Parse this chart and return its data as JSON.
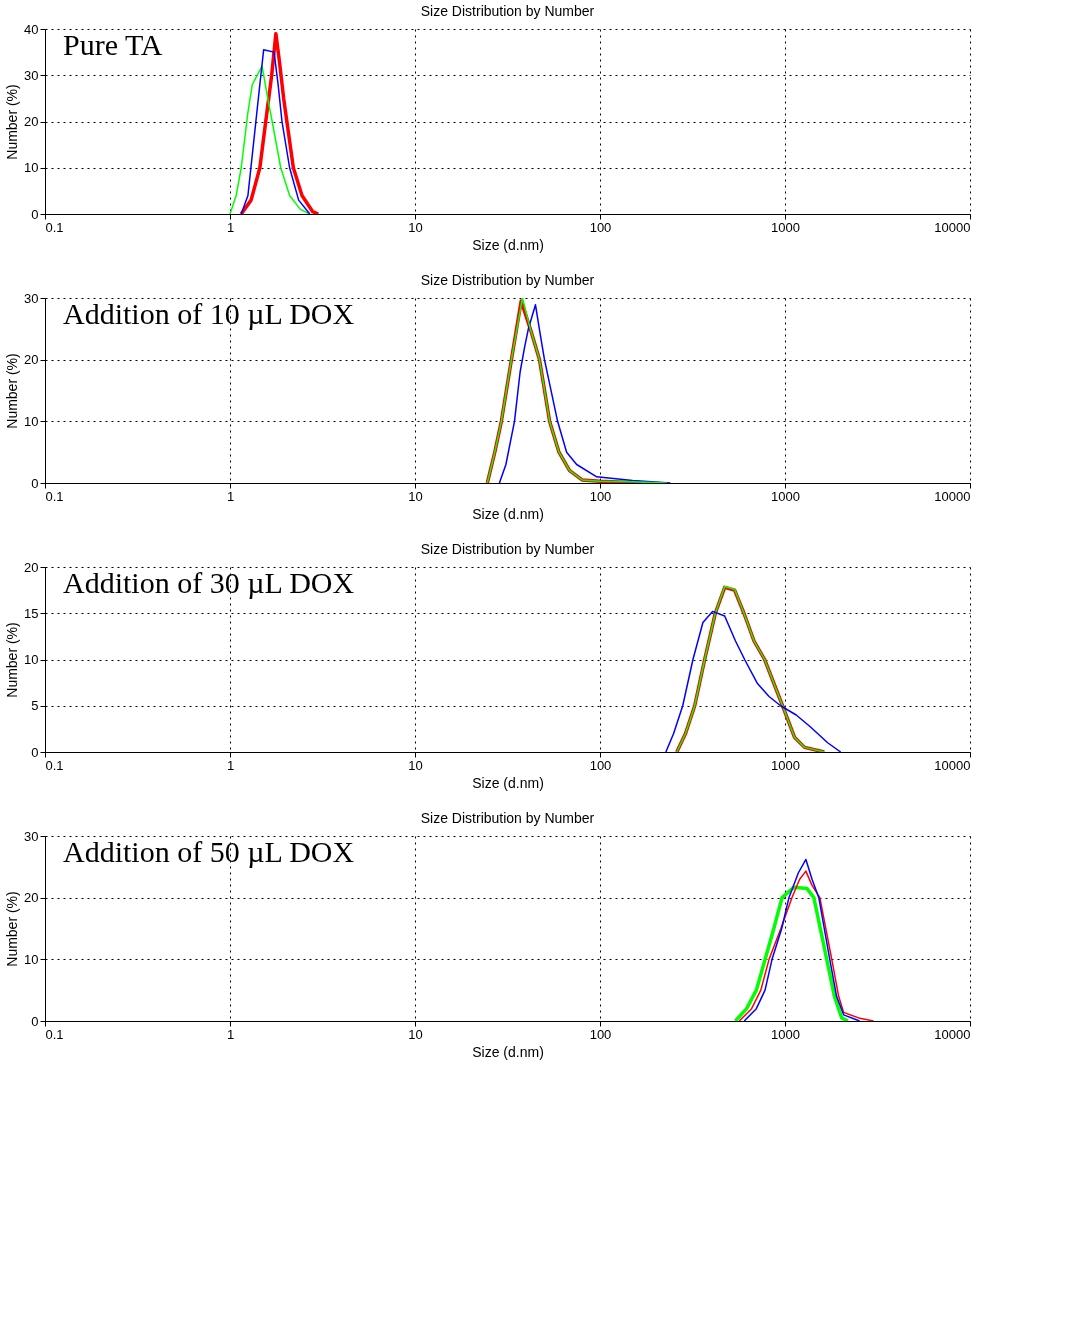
{
  "chart_data": [
    {
      "type": "line",
      "title": "Size Distribution by Number",
      "xlabel": "Size (d.nm)",
      "ylabel": "Number (%)",
      "annotations": [
        "Pure TA"
      ],
      "log": "x",
      "grid": true,
      "xlim": [
        0.1,
        10000
      ],
      "xticks": [
        0.1,
        1,
        10,
        100,
        1000,
        10000
      ],
      "ylim": [
        0,
        40
      ],
      "yticks": [
        0,
        10,
        20,
        30,
        40
      ],
      "series": [
        {
          "color": "#ff0000",
          "x": [
            1.15,
            1.3,
            1.45,
            1.56,
            1.68,
            1.77,
            1.85,
            1.95,
            2.03,
            2.2,
            2.45,
            2.8,
            3.0
          ],
          "values": [
            0,
            3,
            10,
            20,
            30,
            39,
            33,
            25,
            20,
            10,
            4,
            0.5,
            0
          ]
        },
        {
          "color": "#00ff00",
          "x": [
            1.0,
            1.08,
            1.15,
            1.25,
            1.32,
            1.49,
            1.6,
            1.69,
            1.88,
            2.1,
            2.4,
            2.7
          ],
          "values": [
            0,
            4,
            10,
            22,
            28,
            32,
            25,
            20,
            10,
            4,
            1,
            0
          ]
        },
        {
          "color": "#0000ff",
          "x": [
            1.15,
            1.25,
            1.38,
            1.45,
            1.52,
            1.73,
            1.82,
            1.91,
            2.1,
            2.35,
            2.7
          ],
          "values": [
            0,
            4,
            20,
            28,
            35.5,
            35,
            28,
            20,
            10,
            3,
            0
          ]
        }
      ]
    },
    {
      "type": "line",
      "title": "Size Distribution by Number",
      "xlabel": "Size (d.nm)",
      "ylabel": "Number (%)",
      "annotations": [
        "Addition of 10 µL DOX"
      ],
      "log": "x",
      "grid": true,
      "xlim": [
        0.1,
        10000
      ],
      "xticks": [
        0.1,
        1,
        10,
        100,
        1000,
        10000
      ],
      "ylim": [
        0,
        30
      ],
      "yticks": [
        0,
        10,
        20,
        30
      ],
      "series": [
        {
          "color": "#ff0000",
          "x": [
            24.6,
            27,
            29.3,
            33.2,
            37.5,
            42,
            47.1,
            53.4,
            60,
            68.5,
            80,
            100,
            170
          ],
          "values": [
            0,
            5,
            10,
            20,
            29.5,
            25,
            20,
            10,
            5,
            2,
            0.5,
            0.3,
            0
          ]
        },
        {
          "color": "#0000ff",
          "x": [
            28.6,
            31,
            34.5,
            37,
            39.1,
            41,
            44.8,
            47,
            50.1,
            59,
            66,
            74.8,
            96,
            150,
            240
          ],
          "values": [
            0,
            3,
            10,
            18,
            22,
            25,
            28.9,
            25,
            20,
            10,
            5,
            3,
            1,
            0.4,
            0
          ]
        },
        {
          "color": "#00ff00",
          "x": [
            24.6,
            27,
            29.3,
            33.2,
            38.1,
            42,
            47.1,
            53.4,
            60,
            68.5,
            80,
            100,
            150,
            230
          ],
          "values": [
            0,
            5,
            10,
            20,
            30,
            25,
            20,
            10,
            5,
            2,
            0.5,
            0.3,
            0.2,
            0
          ]
        }
      ]
    },
    {
      "type": "line",
      "title": "Size Distribution by Number",
      "xlabel": "Size (d.nm)",
      "ylabel": "Number (%)",
      "annotations": [
        "Addition of 30 µL DOX"
      ],
      "log": "x",
      "grid": true,
      "xlim": [
        0.1,
        10000
      ],
      "xticks": [
        0.1,
        1,
        10,
        100,
        1000,
        10000
      ],
      "ylim": [
        0,
        20
      ],
      "yticks": [
        0,
        5,
        10,
        15,
        20
      ],
      "series": [
        {
          "color": "#ff0000",
          "x": [
            260,
            290,
            325,
            368,
            420,
            472,
            534,
            600,
            680,
            776,
            970,
            1125,
            1276,
            1630
          ],
          "values": [
            0,
            2,
            5,
            10,
            15,
            17.8,
            17.5,
            15,
            12,
            10,
            5,
            1.6,
            0.5,
            0
          ]
        },
        {
          "color": "#00ff00",
          "x": [
            260,
            290,
            325,
            368,
            420,
            472,
            534,
            600,
            680,
            776,
            970,
            1125,
            1276,
            1630
          ],
          "values": [
            0,
            2,
            5,
            10,
            15,
            17.9,
            17.6,
            15,
            12,
            10,
            5,
            1.6,
            0.5,
            0
          ]
        },
        {
          "color": "#0000ff",
          "x": [
            227,
            250,
            280,
            318,
            360,
            406,
            472,
            540,
            605,
            710,
            820,
            946,
            1150,
            1374,
            1700,
            2000
          ],
          "values": [
            0,
            2,
            5,
            10,
            14,
            15.2,
            14.7,
            12,
            10,
            7.4,
            6,
            5,
            4,
            2.7,
            1,
            0
          ]
        }
      ]
    },
    {
      "type": "line",
      "title": "Size Distribution by Number",
      "xlabel": "Size (d.nm)",
      "ylabel": "Number (%)",
      "annotations": [
        "Addition of 50 µL DOX"
      ],
      "log": "x",
      "grid": true,
      "xlim": [
        0.1,
        10000
      ],
      "xticks": [
        0.1,
        1,
        10,
        100,
        1000,
        10000
      ],
      "ylim": [
        0,
        30
      ],
      "yticks": [
        0,
        10,
        20,
        30
      ],
      "series": [
        {
          "color": "#00ff00",
          "x": [
            539,
            620,
            700,
            781,
            870,
            964,
            1118,
            1313,
            1432,
            1681,
            1850,
            2025,
            2190
          ],
          "values": [
            0,
            2,
            5,
            10,
            15,
            20,
            21.7,
            21.5,
            20,
            10,
            4,
            0.5,
            0
          ]
        },
        {
          "color": "#ff0000",
          "x": [
            566,
            660,
            740,
            820,
            950,
            1090,
            1200,
            1297,
            1400,
            1543,
            1790,
            1950,
            2075,
            2500,
            3010
          ],
          "values": [
            0,
            2,
            5,
            10,
            15,
            20,
            23,
            24.3,
            22,
            20,
            10,
            4,
            1.4,
            0.5,
            0
          ]
        },
        {
          "color": "#0000ff",
          "x": [
            602,
            700,
            780,
            851,
            960,
            1050,
            1180,
            1297,
            1400,
            1523,
            1746,
            1900,
            2075,
            2530
          ],
          "values": [
            0,
            2,
            5,
            10,
            15,
            20,
            24,
            26.2,
            23,
            20,
            10,
            4,
            1,
            0
          ]
        }
      ]
    }
  ]
}
